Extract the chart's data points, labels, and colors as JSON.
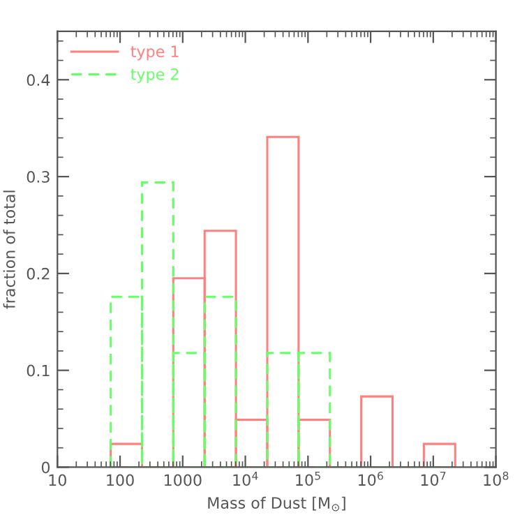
{
  "chart_data": {
    "type": "histogram",
    "xlabel": "Mass of Dust [M$_{⊙}$]",
    "ylabel": "fraction of total",
    "log": "x",
    "bins": [
      71,
      224,
      708,
      2240,
      7080,
      22400,
      70800,
      224000,
      708000,
      2240000,
      7080000,
      22400000
    ],
    "series": [
      {
        "name": "type 1",
        "color": "#ff8080",
        "line_style": "solid",
        "values": [
          0.024,
          0,
          0.195,
          0.244,
          0.049,
          0.341,
          0.049,
          0,
          0.073,
          0,
          0.024
        ]
      },
      {
        "name": "type 2",
        "color": "#66ff66",
        "line_style": "dashed",
        "values": [
          0.176,
          0.294,
          0.118,
          0.176,
          0,
          0.118,
          0.118,
          0,
          0,
          0,
          0
        ]
      }
    ],
    "xlim": [
      10,
      100000000
    ],
    "xticks": [
      10,
      100,
      1000,
      {
        "value": 10000,
        "label": "10$^{4}$"
      },
      {
        "value": 100000,
        "label": "10$^{5}$"
      },
      {
        "value": 1000000,
        "label": "10$^{6}$"
      },
      {
        "value": 10000000,
        "label": "10$^{7}$"
      },
      {
        "value": 100000000,
        "label": "10$^{8}$"
      }
    ],
    "ylim": [
      0,
      0.45
    ],
    "yticks": [
      0,
      0.1,
      0.2,
      0.3,
      0.4
    ],
    "grid": false,
    "legend": "top left"
  }
}
